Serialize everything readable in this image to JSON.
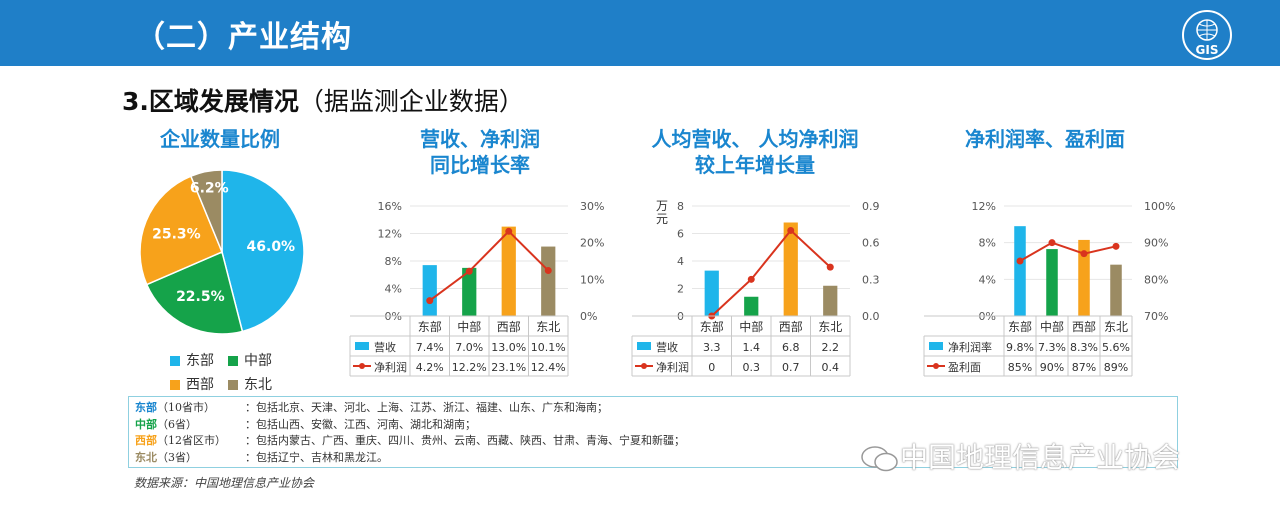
{
  "header": {
    "title": "（二）产业结构",
    "logo_text": "GIS",
    "logo_icon": "globe-logo-icon"
  },
  "subtitle": {
    "main": "3.区域发展情况",
    "note": "（据监测企业数据）"
  },
  "colors": {
    "blue": "#1fb5ea",
    "green": "#15a34a",
    "orange": "#f7a21b",
    "olive": "#9b8b63",
    "line": "#d9341e",
    "title": "#1a86cf"
  },
  "chart_data": [
    {
      "type": "pie",
      "title": "企业数量比例",
      "slices": [
        {
          "name": "东部",
          "value": 46.0,
          "label": "46.0%",
          "color": "#1fb5ea"
        },
        {
          "name": "中部",
          "value": 22.5,
          "label": "22.5%",
          "color": "#15a34a"
        },
        {
          "name": "西部",
          "value": 25.3,
          "label": "25.3%",
          "color": "#f7a21b"
        },
        {
          "name": "东北",
          "value": 6.2,
          "label": "6.2%",
          "color": "#9b8b63"
        }
      ],
      "legend_position": "bottom"
    },
    {
      "type": "bar+line",
      "title": [
        "营收、净利润",
        "同比增长率"
      ],
      "categories": [
        "东部",
        "中部",
        "西部",
        "东北"
      ],
      "bar_series": {
        "name": "营收",
        "values": [
          7.4,
          7.0,
          13.0,
          10.1
        ],
        "labels": [
          "7.4%",
          "7.0%",
          "13.0%",
          "10.1%"
        ]
      },
      "line_series": {
        "name": "净利润",
        "values": [
          4.2,
          12.2,
          23.1,
          12.4
        ],
        "labels": [
          "4.2%",
          "12.2%",
          "23.1%",
          "12.4%"
        ]
      },
      "left_axis": {
        "min": 0,
        "max": 16,
        "ticks": [
          "0%",
          "4%",
          "8%",
          "12%",
          "16%"
        ]
      },
      "right_axis": {
        "min": 0,
        "max": 30,
        "ticks": [
          "0%",
          "10%",
          "20%",
          "30%"
        ]
      },
      "left_unit": "",
      "data_table": true
    },
    {
      "type": "bar+line",
      "title": [
        "人均营收、 人均净利润",
        "较上年增长量"
      ],
      "categories": [
        "东部",
        "中部",
        "西部",
        "东北"
      ],
      "bar_series": {
        "name": "营收",
        "values": [
          3.3,
          1.4,
          6.8,
          2.2
        ],
        "labels": [
          "3.3",
          "1.4",
          "6.8",
          "2.2"
        ]
      },
      "line_series": {
        "name": "净利润",
        "values": [
          0,
          0.3,
          0.7,
          0.4
        ],
        "labels": [
          "0",
          "0.3",
          "0.7",
          "0.4"
        ]
      },
      "left_axis": {
        "min": 0,
        "max": 8,
        "ticks": [
          "0",
          "2",
          "4",
          "6",
          "8"
        ]
      },
      "right_axis": {
        "min": 0,
        "max": 0.9,
        "ticks": [
          "0.0",
          "0.3",
          "0.6",
          "0.9"
        ]
      },
      "left_unit": "万元",
      "data_table": true
    },
    {
      "type": "bar+line",
      "title": [
        "净利润率、盈利面"
      ],
      "categories": [
        "东部",
        "中部",
        "西部",
        "东北"
      ],
      "bar_series": {
        "name": "净利润率",
        "values": [
          9.8,
          7.3,
          8.3,
          5.6
        ],
        "labels": [
          "9.8%",
          "7.3%",
          "8.3%",
          "5.6%"
        ]
      },
      "line_series": {
        "name": "盈利面",
        "values": [
          85,
          90,
          87,
          89
        ],
        "labels": [
          "85%",
          "90%",
          "87%",
          "89%"
        ]
      },
      "left_axis": {
        "min": 0,
        "max": 12,
        "ticks": [
          "0%",
          "4%",
          "8%",
          "12%"
        ]
      },
      "right_axis": {
        "min": 70,
        "max": 100,
        "ticks": [
          "70%",
          "80%",
          "90%",
          "100%"
        ]
      },
      "left_unit": "",
      "data_table": true
    }
  ],
  "regions": [
    {
      "name": "东部",
      "count": "（10省市）",
      "desc": "：包括北京、天津、河北、上海、江苏、浙江、福建、山东、广东和海南；",
      "color": "#1fb5ea"
    },
    {
      "name": "中部",
      "count": "（6省）",
      "desc": "：包括山西、安徽、江西、河南、湖北和湖南；",
      "color": "#15a34a"
    },
    {
      "name": "西部",
      "count": "（12省区市）",
      "desc": "：包括内蒙古、广西、重庆、四川、贵州、云南、西藏、陕西、甘肃、青海、宁夏和新疆；",
      "color": "#f7a21b"
    },
    {
      "name": "东北",
      "count": "（3省）",
      "desc": "：包括辽宁、吉林和黑龙江。",
      "color": "#9b8b63"
    }
  ],
  "source": "数据来源：中国地理信息产业协会",
  "watermark": {
    "text": "中国地理信息产业协会",
    "icon": "wechat-icon"
  }
}
